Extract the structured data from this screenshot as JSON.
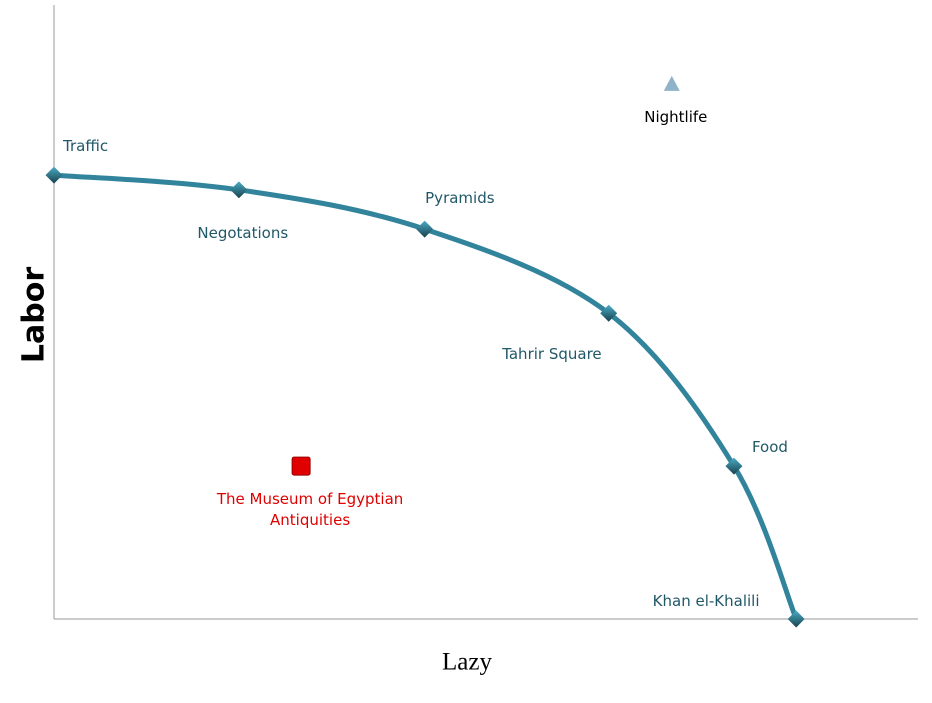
{
  "chart_data": {
    "type": "line",
    "x_label": "Lazy",
    "y_label": "Labor",
    "xlim": [
      0,
      100
    ],
    "ylim": [
      0,
      100
    ],
    "series": [
      {
        "color": "#31849b",
        "label_color": "#215868",
        "x": [
          0,
          21.4,
          42.9,
          64.2,
          78.7,
          85.9
        ],
        "values": [
          72.3,
          69.9,
          63.5,
          49.8,
          24.9,
          0
        ],
        "labels": [
          "Traffic",
          "Negotations",
          "Pyramids",
          "Tahrir Square",
          "Food",
          "Khan el-Khalili"
        ]
      }
    ],
    "markers": [
      {
        "label": "Nightlife",
        "x": 71.5,
        "y": 87.0,
        "shape": "triangle",
        "color": "#8fb3c9",
        "label_color": "#000000"
      },
      {
        "label": "The Museum of Egyptian Antiquities",
        "x": 28.6,
        "y": 24.9,
        "shape": "square",
        "color": "#e00000",
        "label_color": "#e00000"
      }
    ]
  }
}
